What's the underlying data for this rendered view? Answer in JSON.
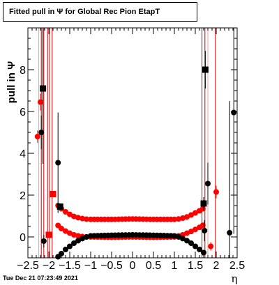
{
  "chart_data": {
    "type": "scatter",
    "title": "Fitted pull in  Ψ  for Global Rec Pion EtapT",
    "xlabel": "η",
    "ylabel": "pull in  Ψ",
    "xlim": [
      -2.5,
      2.5
    ],
    "ylim": [
      -1.0,
      10.0
    ],
    "x_ticks": [
      "−2.5",
      "−2",
      "−1.5",
      "−1",
      "−0.5",
      "0",
      "0.5",
      "1",
      "1.5",
      "2",
      "2.5"
    ],
    "y_ticks": [
      "0",
      "2",
      "4",
      "6",
      "8"
    ],
    "grid": false,
    "vertical_lines": [
      {
        "x": -2.24,
        "color": "#e8a0a0"
      },
      {
        "x": -2.18,
        "color": "#cc0000"
      },
      {
        "x": -2.12,
        "color": "#cc0000"
      },
      {
        "x": -2.03,
        "color": "#cc0000"
      },
      {
        "x": -1.98,
        "color": "#cc0000"
      },
      {
        "x": -1.92,
        "color": "#cc0000"
      },
      {
        "x": 1.66,
        "color": "#cc0000"
      },
      {
        "x": 1.73,
        "color": "#cc0000"
      },
      {
        "x": 1.8,
        "color": "#e8a0a0"
      },
      {
        "x": 1.98,
        "color": "#cc0000"
      }
    ],
    "series": [
      {
        "color": "#000000",
        "marker": "square",
        "points": [
          {
            "x": -2.14,
            "y": 7.1,
            "err": 3.6
          },
          {
            "x": 1.74,
            "y": 8.0,
            "err": 0.9
          },
          {
            "x": 1.7,
            "y": 1.6,
            "err": 0.3
          },
          {
            "x": -1.73,
            "y": 1.45,
            "err": 0.1
          }
        ]
      },
      {
        "color": "#000000",
        "marker": "circle",
        "points": [
          {
            "x": -2.18,
            "y": 5.0,
            "err": 0.8
          },
          {
            "x": -2.12,
            "y": -0.2,
            "err": 0.3
          },
          {
            "x": -1.78,
            "y": 3.55,
            "err": 2.4
          },
          {
            "x": 1.72,
            "y": 0.3,
            "err": 0.5
          },
          {
            "x": 1.8,
            "y": 2.55,
            "err": 1.0
          },
          {
            "x": 2.32,
            "y": 0.2,
            "err": 6.3
          },
          {
            "x": 2.42,
            "y": 5.95,
            "err": 5.8
          }
        ]
      },
      {
        "color": "#ff0000",
        "marker": "circle",
        "points": [
          {
            "x": -2.27,
            "y": 4.8,
            "err": 0.3
          },
          {
            "x": -2.2,
            "y": 6.45,
            "err": 0.4
          },
          {
            "x": 1.87,
            "y": -0.45,
            "err": 0.2
          },
          {
            "x": 2.0,
            "y": 2.15,
            "err": 0.3
          }
        ]
      },
      {
        "color": "#ff0000",
        "marker": "square",
        "points": [
          {
            "x": -2.0,
            "y": 0.1,
            "err": 0.1
          },
          {
            "x": -1.9,
            "y": 2.05,
            "err": 0.1
          }
        ]
      }
    ],
    "bands": [
      {
        "color": "#ff0000",
        "label_series": "upper",
        "x": [
          -1.78,
          -1.7,
          -1.6,
          -1.5,
          -1.4,
          -1.3,
          -1.2,
          -1.1,
          -1.0,
          -0.5,
          0.0,
          0.5,
          1.0,
          1.1,
          1.2,
          1.3,
          1.4,
          1.5,
          1.6,
          1.68
        ],
        "y": [
          1.5,
          1.35,
          1.2,
          1.08,
          0.98,
          0.92,
          0.88,
          0.85,
          0.84,
          0.84,
          0.86,
          0.84,
          0.84,
          0.86,
          0.9,
          0.96,
          1.05,
          1.15,
          1.25,
          1.35
        ]
      },
      {
        "color": "#ff0000",
        "label_series": "lower",
        "x": [
          -1.78,
          -1.7,
          -1.6,
          -1.5,
          -1.4,
          -1.3,
          -1.2,
          -1.1,
          -1.0,
          -0.5,
          0.0,
          0.5,
          1.0,
          1.1,
          1.2,
          1.3,
          1.4,
          1.5,
          1.6,
          1.68
        ],
        "y": [
          0.55,
          0.4,
          0.28,
          0.18,
          0.1,
          0.05,
          0.02,
          0.0,
          0.0,
          -0.02,
          0.0,
          -0.02,
          0.0,
          0.05,
          0.1,
          0.18,
          0.26,
          0.36,
          0.46,
          0.56
        ]
      },
      {
        "color": "#000000",
        "label_series": "black",
        "x": [
          -1.78,
          -1.7,
          -1.6,
          -1.5,
          -1.4,
          -1.3,
          -1.2,
          -1.1,
          -1.0,
          -0.5,
          0.0,
          0.5,
          1.0,
          1.1,
          1.2,
          1.3,
          1.4,
          1.5,
          1.6,
          1.7
        ],
        "y": [
          -0.95,
          -0.8,
          -0.6,
          -0.45,
          -0.3,
          -0.18,
          -0.08,
          0.0,
          0.05,
          0.08,
          0.1,
          0.08,
          0.05,
          0.0,
          -0.08,
          -0.18,
          -0.3,
          -0.45,
          -0.6,
          -0.75
        ]
      }
    ]
  },
  "footer": {
    "timestamp": "Tue Dec 21 07:23:49 2021"
  }
}
